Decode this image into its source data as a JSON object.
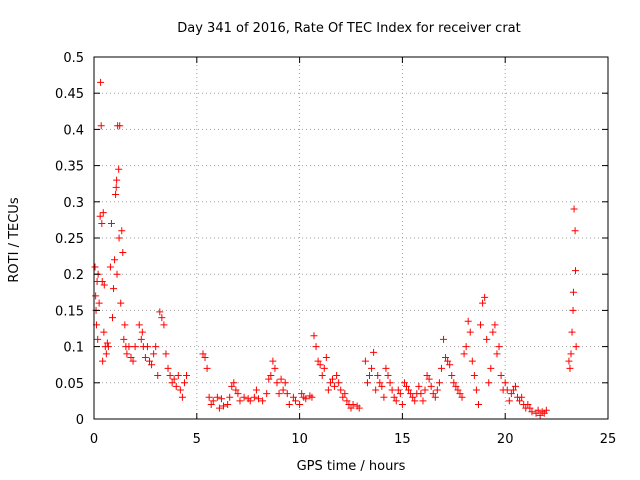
{
  "chart_data": {
    "type": "scatter",
    "title": "Day 341 of 2016, Rate Of TEC Index for receiver crat",
    "xlabel": "GPS time / hours",
    "ylabel": "ROTI / TECUs",
    "xlim": [
      0,
      25
    ],
    "ylim": [
      0,
      0.5
    ],
    "xticks": [
      0,
      5,
      10,
      15,
      20,
      25
    ],
    "xtick_labels": [
      "0",
      "5",
      "10",
      "15",
      "20",
      "25"
    ],
    "yticks": [
      0,
      0.05,
      0.1,
      0.15,
      0.2,
      0.25,
      0.3,
      0.35,
      0.4,
      0.45,
      0.5
    ],
    "ytick_labels": [
      "0",
      "0.05",
      "0.1",
      "0.15",
      "0.2",
      "0.25",
      "0.3",
      "0.35",
      "0.4",
      "0.45",
      "0.5"
    ],
    "grid": true,
    "marker": "plus",
    "color": "#ff0000",
    "series": [
      {
        "points": [
          [
            0.05,
            0.21
          ],
          [
            0.08,
            0.17
          ],
          [
            0.1,
            0.15
          ],
          [
            0.12,
            0.13
          ],
          [
            0.15,
            0.19
          ],
          [
            0.18,
            0.11
          ],
          [
            0.2,
            0.2
          ],
          [
            0.25,
            0.16
          ],
          [
            0.3,
            0.28
          ],
          [
            0.32,
            0.465
          ],
          [
            0.35,
            0.405
          ],
          [
            0.38,
            0.27
          ],
          [
            0.4,
            0.19
          ],
          [
            0.42,
            0.08
          ],
          [
            0.45,
            0.285
          ],
          [
            0.48,
            0.12
          ],
          [
            0.5,
            0.185
          ],
          [
            0.55,
            0.1
          ],
          [
            0.6,
            0.09
          ],
          [
            0.65,
            0.105
          ],
          [
            0.7,
            0.1
          ],
          [
            0.8,
            0.21
          ],
          [
            0.85,
            0.27
          ],
          [
            0.9,
            0.14
          ],
          [
            0.95,
            0.18
          ],
          [
            1.0,
            0.22
          ],
          [
            1.05,
            0.31
          ],
          [
            1.08,
            0.32
          ],
          [
            1.1,
            0.33
          ],
          [
            1.12,
            0.2
          ],
          [
            1.15,
            0.405
          ],
          [
            1.2,
            0.345
          ],
          [
            1.22,
            0.25
          ],
          [
            1.25,
            0.405
          ],
          [
            1.3,
            0.16
          ],
          [
            1.35,
            0.26
          ],
          [
            1.4,
            0.23
          ],
          [
            1.45,
            0.11
          ],
          [
            1.5,
            0.13
          ],
          [
            1.55,
            0.1
          ],
          [
            1.6,
            0.09
          ],
          [
            1.7,
            0.1
          ],
          [
            1.8,
            0.085
          ],
          [
            1.9,
            0.08
          ],
          [
            2.0,
            0.1
          ],
          [
            2.2,
            0.13
          ],
          [
            2.3,
            0.11
          ],
          [
            2.35,
            0.12
          ],
          [
            2.4,
            0.1
          ],
          [
            2.5,
            0.085
          ],
          [
            2.6,
            0.1
          ],
          [
            2.7,
            0.08
          ],
          [
            2.8,
            0.075
          ],
          [
            2.9,
            0.09
          ],
          [
            3.0,
            0.1
          ],
          [
            3.1,
            0.06
          ],
          [
            3.2,
            0.148
          ],
          [
            3.3,
            0.14
          ],
          [
            3.4,
            0.13
          ],
          [
            3.5,
            0.09
          ],
          [
            3.6,
            0.07
          ],
          [
            3.7,
            0.06
          ],
          [
            3.8,
            0.05
          ],
          [
            3.9,
            0.055
          ],
          [
            4.0,
            0.045
          ],
          [
            4.1,
            0.06
          ],
          [
            4.2,
            0.04
          ],
          [
            4.3,
            0.03
          ],
          [
            4.4,
            0.05
          ],
          [
            4.5,
            0.06
          ],
          [
            5.3,
            0.09
          ],
          [
            5.4,
            0.085
          ],
          [
            5.5,
            0.07
          ],
          [
            5.6,
            0.03
          ],
          [
            5.7,
            0.02
          ],
          [
            5.8,
            0.025
          ],
          [
            6.0,
            0.03
          ],
          [
            6.1,
            0.015
          ],
          [
            6.2,
            0.028
          ],
          [
            6.3,
            0.018
          ],
          [
            6.5,
            0.02
          ],
          [
            6.6,
            0.03
          ],
          [
            6.7,
            0.045
          ],
          [
            6.8,
            0.05
          ],
          [
            6.9,
            0.04
          ],
          [
            7.0,
            0.035
          ],
          [
            7.1,
            0.025
          ],
          [
            7.3,
            0.03
          ],
          [
            7.5,
            0.028
          ],
          [
            7.6,
            0.025
          ],
          [
            7.8,
            0.03
          ],
          [
            7.9,
            0.04
          ],
          [
            8.0,
            0.028
          ],
          [
            8.2,
            0.025
          ],
          [
            8.4,
            0.035
          ],
          [
            8.5,
            0.055
          ],
          [
            8.6,
            0.06
          ],
          [
            8.7,
            0.08
          ],
          [
            8.8,
            0.07
          ],
          [
            8.9,
            0.05
          ],
          [
            9.0,
            0.035
          ],
          [
            9.1,
            0.055
          ],
          [
            9.2,
            0.04
          ],
          [
            9.3,
            0.05
          ],
          [
            9.4,
            0.035
          ],
          [
            9.5,
            0.02
          ],
          [
            9.7,
            0.03
          ],
          [
            9.8,
            0.025
          ],
          [
            10.0,
            0.02
          ],
          [
            10.1,
            0.035
          ],
          [
            10.2,
            0.03
          ],
          [
            10.3,
            0.028
          ],
          [
            10.5,
            0.032
          ],
          [
            10.6,
            0.03
          ],
          [
            10.7,
            0.115
          ],
          [
            10.8,
            0.1
          ],
          [
            10.9,
            0.08
          ],
          [
            11.0,
            0.075
          ],
          [
            11.1,
            0.06
          ],
          [
            11.2,
            0.07
          ],
          [
            11.3,
            0.085
          ],
          [
            11.4,
            0.04
          ],
          [
            11.5,
            0.05
          ],
          [
            11.6,
            0.055
          ],
          [
            11.7,
            0.045
          ],
          [
            11.8,
            0.06
          ],
          [
            11.9,
            0.05
          ],
          [
            12.0,
            0.04
          ],
          [
            12.1,
            0.03
          ],
          [
            12.2,
            0.035
          ],
          [
            12.3,
            0.025
          ],
          [
            12.4,
            0.02
          ],
          [
            12.5,
            0.015
          ],
          [
            12.6,
            0.02
          ],
          [
            12.8,
            0.018
          ],
          [
            12.9,
            0.015
          ],
          [
            13.2,
            0.08
          ],
          [
            13.3,
            0.05
          ],
          [
            13.4,
            0.06
          ],
          [
            13.5,
            0.07
          ],
          [
            13.6,
            0.092
          ],
          [
            13.7,
            0.04
          ],
          [
            13.8,
            0.06
          ],
          [
            13.9,
            0.05
          ],
          [
            14.0,
            0.045
          ],
          [
            14.1,
            0.03
          ],
          [
            14.2,
            0.07
          ],
          [
            14.3,
            0.06
          ],
          [
            14.4,
            0.05
          ],
          [
            14.5,
            0.04
          ],
          [
            14.6,
            0.03
          ],
          [
            14.7,
            0.025
          ],
          [
            14.8,
            0.04
          ],
          [
            14.9,
            0.035
          ],
          [
            15.0,
            0.02
          ],
          [
            15.1,
            0.05
          ],
          [
            15.2,
            0.045
          ],
          [
            15.3,
            0.04
          ],
          [
            15.4,
            0.035
          ],
          [
            15.5,
            0.03
          ],
          [
            15.6,
            0.025
          ],
          [
            15.7,
            0.035
          ],
          [
            15.8,
            0.045
          ],
          [
            15.9,
            0.035
          ],
          [
            16.0,
            0.025
          ],
          [
            16.1,
            0.04
          ],
          [
            16.2,
            0.06
          ],
          [
            16.3,
            0.055
          ],
          [
            16.4,
            0.045
          ],
          [
            16.5,
            0.035
          ],
          [
            16.6,
            0.03
          ],
          [
            16.7,
            0.04
          ],
          [
            16.8,
            0.05
          ],
          [
            16.9,
            0.07
          ],
          [
            17.0,
            0.11
          ],
          [
            17.1,
            0.085
          ],
          [
            17.2,
            0.08
          ],
          [
            17.3,
            0.075
          ],
          [
            17.4,
            0.06
          ],
          [
            17.5,
            0.05
          ],
          [
            17.6,
            0.045
          ],
          [
            17.7,
            0.04
          ],
          [
            17.8,
            0.035
          ],
          [
            17.9,
            0.03
          ],
          [
            18.0,
            0.09
          ],
          [
            18.1,
            0.1
          ],
          [
            18.2,
            0.135
          ],
          [
            18.3,
            0.12
          ],
          [
            18.4,
            0.08
          ],
          [
            18.5,
            0.06
          ],
          [
            18.6,
            0.04
          ],
          [
            18.7,
            0.02
          ],
          [
            18.8,
            0.13
          ],
          [
            18.9,
            0.16
          ],
          [
            19.0,
            0.168
          ],
          [
            19.1,
            0.11
          ],
          [
            19.2,
            0.05
          ],
          [
            19.3,
            0.07
          ],
          [
            19.4,
            0.12
          ],
          [
            19.5,
            0.13
          ],
          [
            19.6,
            0.09
          ],
          [
            19.7,
            0.1
          ],
          [
            19.8,
            0.06
          ],
          [
            19.9,
            0.04
          ],
          [
            20.0,
            0.05
          ],
          [
            20.1,
            0.04
          ],
          [
            20.2,
            0.025
          ],
          [
            20.3,
            0.035
          ],
          [
            20.4,
            0.04
          ],
          [
            20.5,
            0.045
          ],
          [
            20.6,
            0.03
          ],
          [
            20.7,
            0.025
          ],
          [
            20.8,
            0.03
          ],
          [
            20.9,
            0.02
          ],
          [
            21.0,
            0.015
          ],
          [
            21.1,
            0.02
          ],
          [
            21.2,
            0.015
          ],
          [
            21.3,
            0.01
          ],
          [
            21.5,
            0.008
          ],
          [
            21.6,
            0.012
          ],
          [
            21.7,
            0.005
          ],
          [
            21.8,
            0.01
          ],
          [
            21.9,
            0.008
          ],
          [
            22.0,
            0.012
          ],
          [
            23.1,
            0.08
          ],
          [
            23.15,
            0.07
          ],
          [
            23.2,
            0.09
          ],
          [
            23.25,
            0.12
          ],
          [
            23.3,
            0.15
          ],
          [
            23.32,
            0.175
          ],
          [
            23.35,
            0.29
          ],
          [
            23.4,
            0.26
          ],
          [
            23.42,
            0.205
          ],
          [
            23.45,
            0.1
          ]
        ]
      }
    ]
  }
}
